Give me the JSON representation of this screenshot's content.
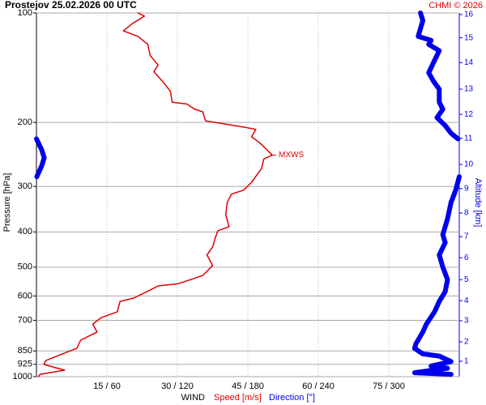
{
  "chart_data": {
    "type": "line",
    "title": "Prostejov    25.02.2026 00 UTC",
    "credit": "CHMI © 2026",
    "ylabel": "Pressure [hPa]",
    "y2label": "Altitude [km]",
    "xlabel": "WIND",
    "ylog": true,
    "ylim": [
      100,
      1000
    ],
    "yticks": [
      100,
      200,
      300,
      400,
      500,
      600,
      700,
      850,
      925,
      1000
    ],
    "xlim": [
      0,
      90
    ],
    "x2lim": [
      0,
      360
    ],
    "xticks": [
      {
        "value": 15,
        "label": "15 / 60"
      },
      {
        "value": 30,
        "label": "30 / 120"
      },
      {
        "value": 45,
        "label": "45 / 180"
      },
      {
        "value": 60,
        "label": "60 / 240"
      },
      {
        "value": 75,
        "label": "75 / 300"
      }
    ],
    "grid": true,
    "altitude_ticks": [
      {
        "km": 16,
        "pressure": 101
      },
      {
        "km": 15,
        "pressure": 117
      },
      {
        "km": 14,
        "pressure": 137
      },
      {
        "km": 13,
        "pressure": 162
      },
      {
        "km": 12,
        "pressure": 190
      },
      {
        "km": 11,
        "pressure": 221
      },
      {
        "km": 10,
        "pressure": 261
      },
      {
        "km": 9,
        "pressure": 304
      },
      {
        "km": 8,
        "pressure": 355
      },
      {
        "km": 7,
        "pressure": 412
      },
      {
        "km": 6,
        "pressure": 471
      },
      {
        "km": 5,
        "pressure": 541
      },
      {
        "km": 4,
        "pressure": 618
      },
      {
        "km": 3,
        "pressure": 702
      },
      {
        "km": 2,
        "pressure": 802
      },
      {
        "km": 1,
        "pressure": 907
      }
    ],
    "annotation": {
      "text": "MXWS",
      "pressure": 246
    },
    "series": [
      {
        "name": "Speed [m/s]",
        "color": "#e00000",
        "axis": "x",
        "pressure": [
          100,
          102,
          107,
          112,
          116,
          122,
          131,
          139,
          145,
          154,
          164,
          176,
          178,
          184,
          187,
          198,
          206,
          209,
          219,
          228,
          246,
          252,
          268,
          292,
          307,
          315,
          332,
          359,
          387,
          397,
          418,
          440,
          463,
          495,
          527,
          541,
          555,
          563,
          578,
          608,
          621,
          663,
          688,
          717,
          754,
          794,
          836,
          849,
          903,
          926,
          960,
          985,
          1000
        ],
        "values": [
          21.6,
          23.0,
          20.4,
          18.5,
          21.6,
          23.7,
          24.2,
          25.9,
          25.0,
          26.8,
          28.5,
          28.9,
          32.0,
          33.7,
          35.4,
          36.0,
          44.1,
          46.7,
          45.8,
          47.6,
          50.2,
          48.4,
          47.9,
          45.8,
          44.1,
          41.5,
          40.6,
          40.3,
          41.0,
          38.6,
          38.0,
          37.5,
          36.3,
          37.5,
          35.4,
          32.8,
          30.2,
          25.9,
          24.2,
          20.7,
          17.8,
          17.2,
          13.8,
          12.0,
          12.9,
          9.4,
          8.6,
          7.2,
          2.0,
          1.6,
          6.0,
          0.8,
          0.4
        ]
      },
      {
        "name": "Direction [°]",
        "color": "#0000ee",
        "axis": "x2",
        "pressure": [
          100,
          105,
          116,
          119,
          122,
          127,
          135,
          146,
          154,
          162,
          176,
          184,
          194,
          204,
          214,
          222,
          null,
          222,
          238,
          250,
          263,
          282,
          null,
          282,
          307,
          332,
          368,
          407,
          428,
          463,
          500,
          541,
          584,
          621,
          663,
          717,
          754,
          813,
          836,
          866,
          878,
          909,
          935,
          948,
          975,
          985
        ],
        "values": [
          327,
          329,
          325,
          336,
          334,
          343,
          339,
          334,
          338,
          343,
          343,
          346,
          341,
          348,
          353,
          359,
          null,
          0,
          4.5,
          6.6,
          4.5,
          0.3,
          null,
          360,
          357,
          353,
          350,
          346,
          348,
          343,
          346,
          350,
          348,
          343,
          339,
          332,
          329,
          323,
          322,
          329,
          343,
          353,
          336,
          350,
          322,
          353
        ]
      }
    ]
  }
}
